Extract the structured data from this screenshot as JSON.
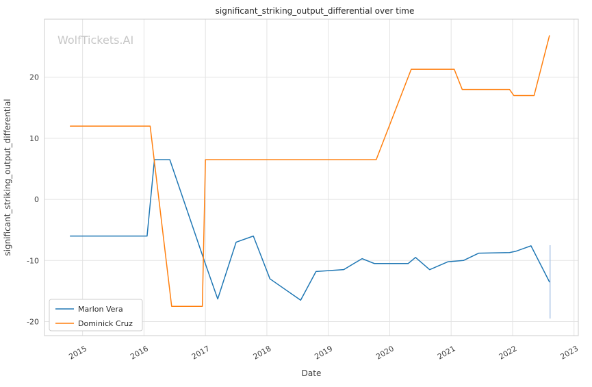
{
  "watermark": "WolfTickets.AI",
  "chart_data": {
    "type": "line",
    "title": "significant_striking_output_differential over time",
    "xlabel": "Date",
    "ylabel": "significant_striking_output_differential",
    "xlim": [
      2014.38,
      2023.07
    ],
    "ylim": [
      -22.3,
      29.5
    ],
    "xticks": [
      2015,
      2016,
      2017,
      2018,
      2019,
      2020,
      2021,
      2022,
      2023
    ],
    "yticks": [
      -20,
      -10,
      0,
      10,
      20
    ],
    "grid": true,
    "legend_position": "lower left",
    "series": [
      {
        "name": "Marlon Vera",
        "color": "#1f77b4",
        "points": [
          [
            2014.8,
            -6.0
          ],
          [
            2016.05,
            -6.0
          ],
          [
            2016.17,
            6.5
          ],
          [
            2016.42,
            6.5
          ],
          [
            2016.98,
            -10.0
          ],
          [
            2017.2,
            -16.3
          ],
          [
            2017.5,
            -7.0
          ],
          [
            2017.78,
            -6.0
          ],
          [
            2018.05,
            -13.0
          ],
          [
            2018.55,
            -16.5
          ],
          [
            2018.8,
            -11.8
          ],
          [
            2019.25,
            -11.5
          ],
          [
            2019.55,
            -9.7
          ],
          [
            2019.75,
            -10.5
          ],
          [
            2020.3,
            -10.5
          ],
          [
            2020.42,
            -9.5
          ],
          [
            2020.65,
            -11.5
          ],
          [
            2020.95,
            -10.2
          ],
          [
            2021.2,
            -10.0
          ],
          [
            2021.45,
            -8.8
          ],
          [
            2021.95,
            -8.7
          ],
          [
            2022.05,
            -8.5
          ],
          [
            2022.3,
            -7.6
          ],
          [
            2022.6,
            -13.5
          ]
        ]
      },
      {
        "name": "Dominick Cruz",
        "color": "#ff7f0e",
        "points": [
          [
            2014.8,
            12.0
          ],
          [
            2016.1,
            12.0
          ],
          [
            2016.45,
            -17.5
          ],
          [
            2016.95,
            -17.5
          ],
          [
            2017.0,
            6.5
          ],
          [
            2019.78,
            6.5
          ],
          [
            2020.35,
            21.3
          ],
          [
            2021.05,
            21.3
          ],
          [
            2021.18,
            18.0
          ],
          [
            2021.95,
            18.0
          ],
          [
            2022.02,
            17.0
          ],
          [
            2022.35,
            17.0
          ],
          [
            2022.6,
            26.8
          ]
        ]
      }
    ],
    "annotations": [
      {
        "type": "vline-segment",
        "x": 2022.61,
        "y1": -7.5,
        "y2": -19.5,
        "color": "#aec7e8"
      }
    ]
  }
}
